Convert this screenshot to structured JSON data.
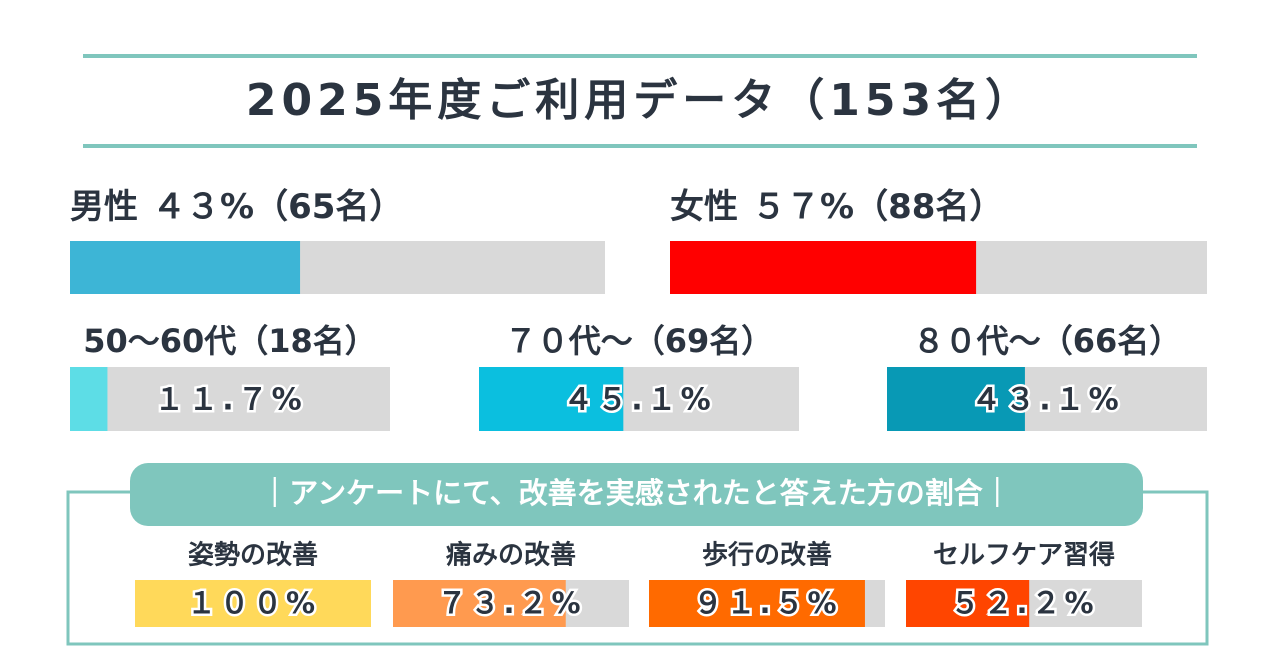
{
  "title": "2025年度ご利用データ（153名）",
  "gender": [
    {
      "name": "男性",
      "value_label": "４３%",
      "count": "（65名）",
      "value": 43,
      "color": "#3db5d6"
    },
    {
      "name": "女性",
      "value_label": "５７%",
      "count": "（88名）",
      "value": 57,
      "color": "#ff0000"
    }
  ],
  "age_groups": [
    {
      "name": "50〜60代（18名）",
      "value": 11.7,
      "value_label": "１１.７%",
      "color": "#5ddde6"
    },
    {
      "name": "７０代〜（69名）",
      "value": 45.1,
      "value_label": "４５.１%",
      "color": "#0bbfdf"
    },
    {
      "name": "８０代〜（66名）",
      "value": 43.1,
      "value_label": "４３.１%",
      "color": "#0899b5"
    }
  ],
  "survey": {
    "title": "｜アンケートにて、改善を実感されたと答えた方の割合｜",
    "items": [
      {
        "name": "姿勢の改善",
        "value": 100,
        "value_label": "１００%",
        "color": "#ffd95a"
      },
      {
        "name": "痛みの改善",
        "value": 73.2,
        "value_label": "７３.２%",
        "color": "#ff9a4f"
      },
      {
        "name": "歩行の改善",
        "value": 91.5,
        "value_label": "９１.５%",
        "color": "#ff6a00"
      },
      {
        "name": "セルフケア習得",
        "value": 52.2,
        "value_label": "５２.２%",
        "color": "#ff4500"
      }
    ]
  },
  "scale_max": 100
}
